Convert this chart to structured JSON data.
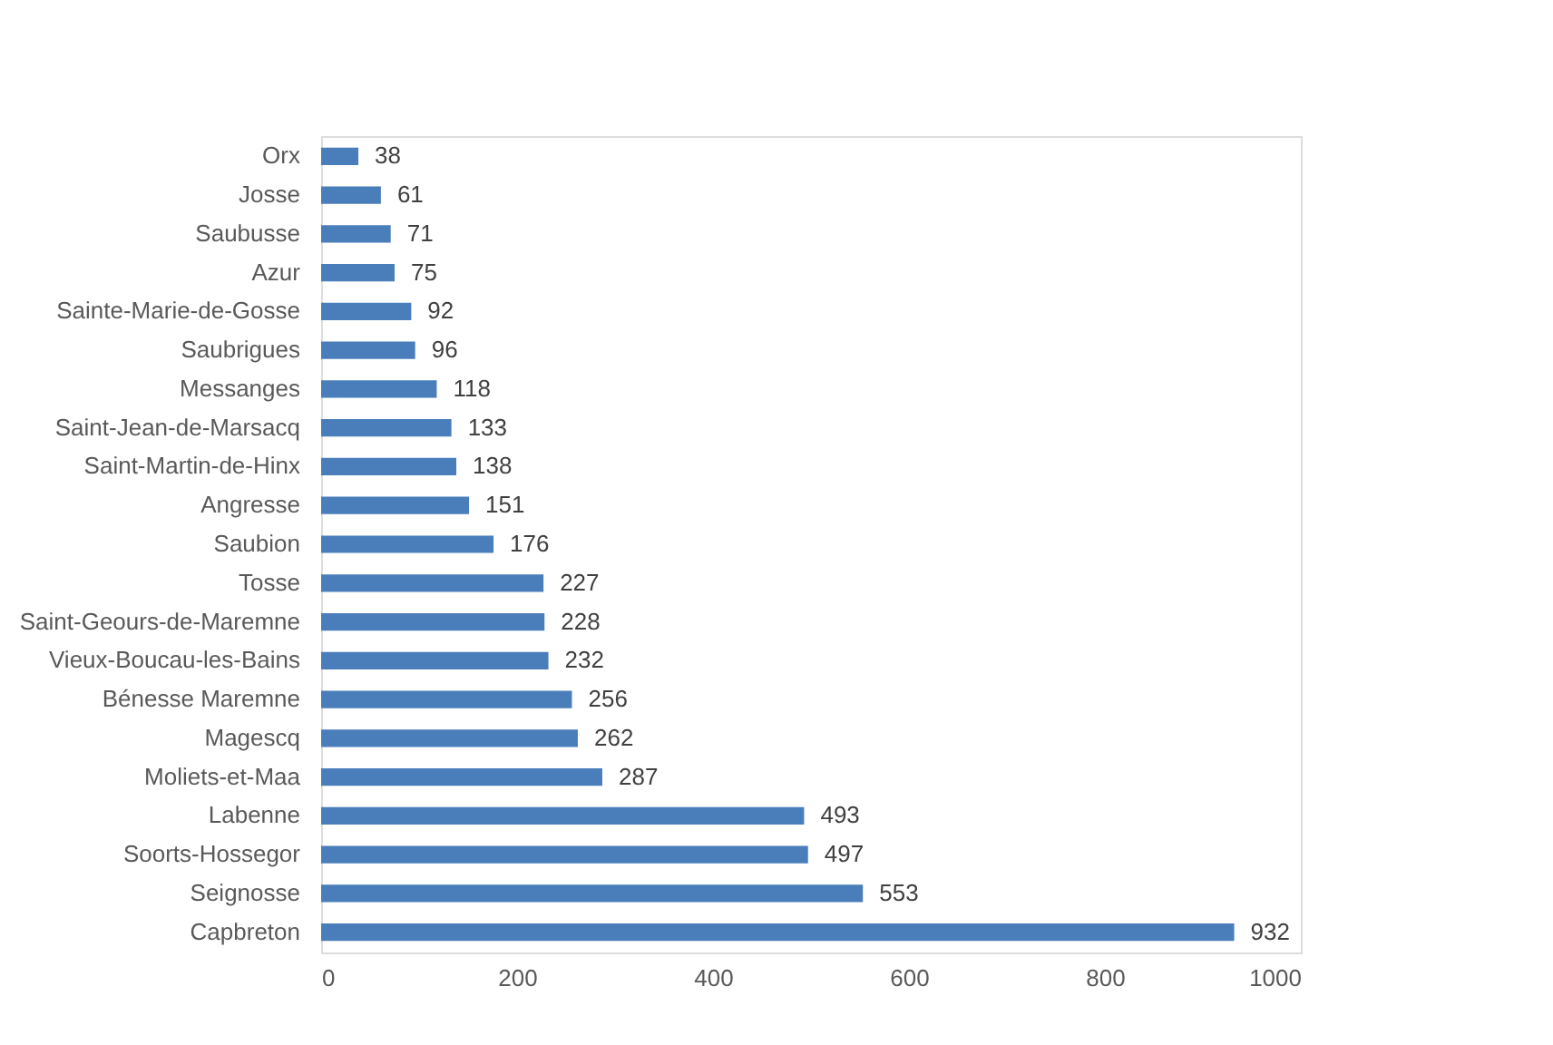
{
  "chart_data": {
    "type": "bar",
    "orientation": "horizontal",
    "categories": [
      "Orx",
      "Josse",
      "Saubusse",
      "Azur",
      "Sainte-Marie-de-Gosse",
      "Saubrigues",
      "Messanges",
      "Saint-Jean-de-Marsacq",
      "Saint-Martin-de-Hinx",
      "Angresse",
      "Saubion",
      "Tosse",
      "Saint-Geours-de-Maremne",
      "Vieux-Boucau-les-Bains",
      "Bénesse Maremne",
      "Magescq",
      "Moliets-et-Maa",
      "Labenne",
      "Soorts-Hossegor",
      "Seignosse",
      "Capbreton"
    ],
    "values": [
      38,
      61,
      71,
      75,
      92,
      96,
      118,
      133,
      138,
      151,
      176,
      227,
      228,
      232,
      256,
      262,
      287,
      493,
      497,
      553,
      932
    ],
    "color": "#4a7ebb",
    "xlim": [
      0,
      1000
    ],
    "xticks": [
      0,
      200,
      400,
      600,
      800,
      1000
    ],
    "grid": false,
    "data_labels": true
  }
}
